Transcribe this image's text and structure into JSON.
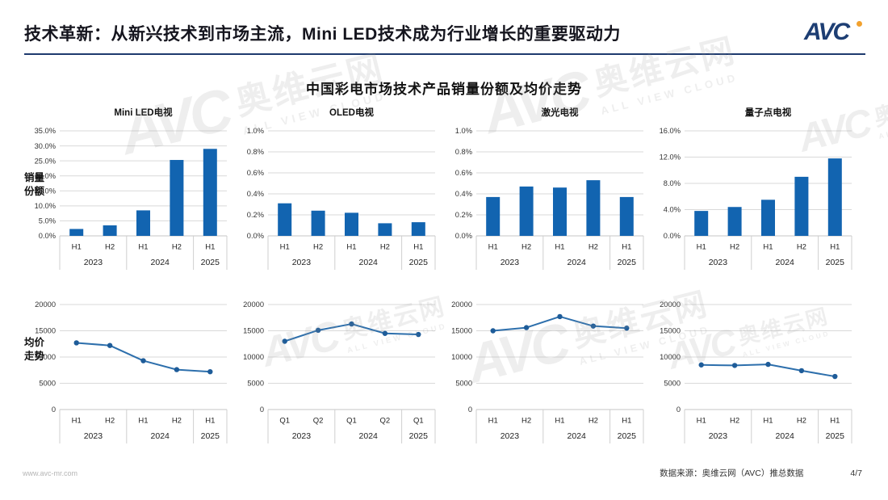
{
  "header": {
    "title": "技术革新：从新兴技术到市场主流，Mini LED技术成为行业增长的重要驱动力",
    "logo_text": "AVC"
  },
  "main_title": "中国彩电市场技术产品销量份额及均价走势",
  "row_labels": {
    "share": [
      "销量",
      "份额"
    ],
    "price": [
      "均价",
      "走势"
    ]
  },
  "watermark": {
    "logo": "AVC",
    "text": "奥维云网",
    "subtext": "ALL VIEW CLOUD"
  },
  "footer": {
    "website": "www.avc-mr.com",
    "source": "数据来源：奥维云网（AVC）推总数据",
    "page": "4/7"
  },
  "colors": {
    "bar": "#1264b0",
    "line": "#2d6fac",
    "marker": "#1e5c99",
    "grid": "#d9d9d9",
    "axis": "#c4c4c4",
    "table_line": "#cfcfcf",
    "navy": "#1e3a6e",
    "logo_navy": "#1d3e73",
    "logo_orange": "#f2a12e"
  },
  "chart_data": {
    "row_titles": [
      "销量份额",
      "均价走势"
    ],
    "year_groups": [
      {
        "label": "2023",
        "span": 2
      },
      {
        "label": "2024",
        "span": 2
      },
      {
        "label": "2025",
        "span": 1
      }
    ],
    "products": [
      {
        "name": "Mini LED电视",
        "share": {
          "type": "bar",
          "categories": [
            "H1",
            "H2",
            "H1",
            "H2",
            "H1"
          ],
          "values": [
            2.3,
            3.5,
            8.5,
            25.3,
            29.0
          ],
          "ylim": [
            0,
            35
          ],
          "yticks": [
            0,
            5,
            10,
            15,
            20,
            25,
            30,
            35
          ],
          "ytick_labels": [
            "0.0%",
            "5.0%",
            "10.0%",
            "15.0%",
            "20.0%",
            "25.0%",
            "30.0%",
            "35.0%"
          ]
        },
        "price": {
          "type": "line",
          "categories": [
            "H1",
            "H2",
            "H1",
            "H2",
            "H1"
          ],
          "values": [
            12700,
            12200,
            9300,
            7600,
            7200
          ],
          "ylim": [
            0,
            20000
          ],
          "yticks": [
            0,
            5000,
            10000,
            15000,
            20000
          ],
          "ytick_labels": [
            "0",
            "5000",
            "10000",
            "15000",
            "20000"
          ]
        }
      },
      {
        "name": "OLED电视",
        "share": {
          "type": "bar",
          "categories": [
            "H1",
            "H2",
            "H1",
            "H2",
            "H1"
          ],
          "values": [
            0.31,
            0.24,
            0.22,
            0.12,
            0.13
          ],
          "ylim": [
            0,
            1
          ],
          "yticks": [
            0,
            0.2,
            0.4,
            0.6,
            0.8,
            1
          ],
          "ytick_labels": [
            "0.0%",
            "0.2%",
            "0.4%",
            "0.6%",
            "0.8%",
            "1.0%"
          ]
        },
        "price": {
          "type": "line",
          "categories": [
            "Q1",
            "Q2",
            "Q1",
            "Q2",
            "Q1"
          ],
          "values": [
            13000,
            15100,
            16300,
            14500,
            14300
          ],
          "ylim": [
            0,
            20000
          ],
          "yticks": [
            0,
            5000,
            10000,
            15000,
            20000
          ],
          "ytick_labels": [
            "0",
            "5000",
            "10000",
            "15000",
            "20000"
          ]
        }
      },
      {
        "name": "激光电视",
        "share": {
          "type": "bar",
          "categories": [
            "H1",
            "H2",
            "H1",
            "H2",
            "H1"
          ],
          "values": [
            0.37,
            0.47,
            0.46,
            0.53,
            0.37
          ],
          "ylim": [
            0,
            1
          ],
          "yticks": [
            0,
            0.2,
            0.4,
            0.6,
            0.8,
            1
          ],
          "ytick_labels": [
            "0.0%",
            "0.2%",
            "0.4%",
            "0.6%",
            "0.8%",
            "1.0%"
          ]
        },
        "price": {
          "type": "line",
          "categories": [
            "H1",
            "H2",
            "H1",
            "H2",
            "H1"
          ],
          "values": [
            15000,
            15600,
            17700,
            15900,
            15500
          ],
          "ylim": [
            0,
            20000
          ],
          "yticks": [
            0,
            5000,
            10000,
            15000,
            20000
          ],
          "ytick_labels": [
            "0",
            "5000",
            "10000",
            "15000",
            "20000"
          ]
        }
      },
      {
        "name": "量子点电视",
        "share": {
          "type": "bar",
          "categories": [
            "H1",
            "H2",
            "H1",
            "H2",
            "H1"
          ],
          "values": [
            3.8,
            4.4,
            5.5,
            9.0,
            11.8
          ],
          "ylim": [
            0,
            16
          ],
          "yticks": [
            0,
            4,
            8,
            12,
            16
          ],
          "ytick_labels": [
            "0.0%",
            "4.0%",
            "8.0%",
            "12.0%",
            "16.0%"
          ]
        },
        "price": {
          "type": "line",
          "categories": [
            "H1",
            "H2",
            "H1",
            "H2",
            "H1"
          ],
          "values": [
            8500,
            8400,
            8600,
            7400,
            6300
          ],
          "ylim": [
            0,
            20000
          ],
          "yticks": [
            0,
            5000,
            10000,
            15000,
            20000
          ],
          "ytick_labels": [
            "0",
            "5000",
            "10000",
            "15000",
            "20000"
          ]
        }
      }
    ]
  }
}
